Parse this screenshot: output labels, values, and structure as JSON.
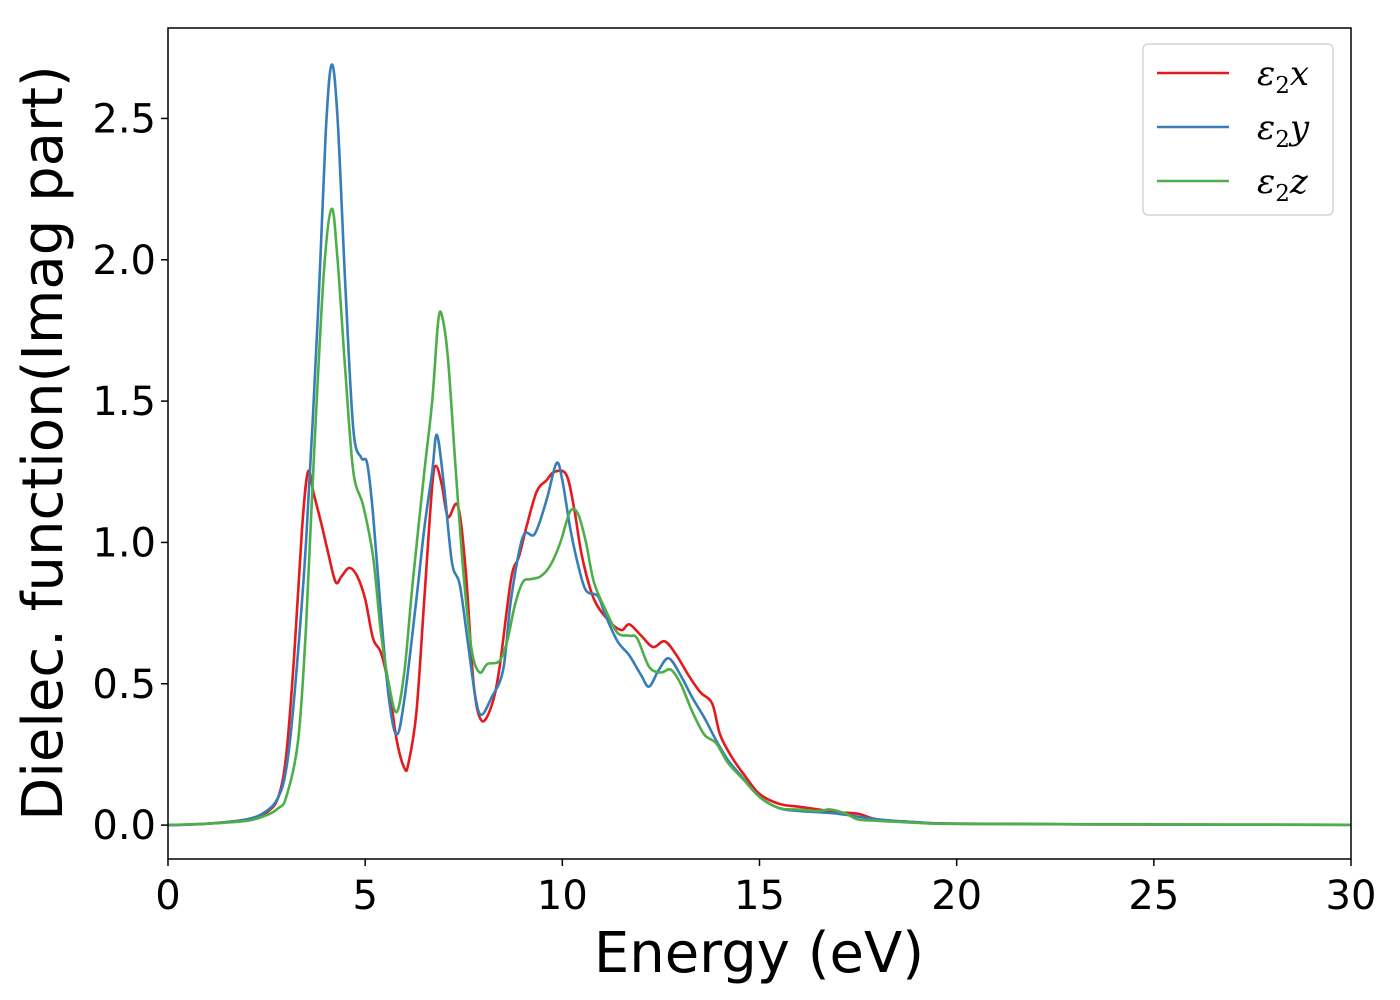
{
  "chart_data": {
    "type": "line",
    "title": "",
    "xlabel": "Energy (eV)",
    "ylabel": "Dielec. function(Imag part)",
    "xlim": [
      0,
      30
    ],
    "ylim": [
      -0.12,
      2.82
    ],
    "xticks": [
      "0",
      "5",
      "10",
      "15",
      "20",
      "25",
      "30"
    ],
    "yticks": [
      "0.0",
      "0.5",
      "1.0",
      "1.5",
      "2.0",
      "2.5"
    ],
    "grid": false,
    "legend_position": "top-right",
    "series": [
      {
        "name": "ε2x",
        "color": "#e41a1c",
        "points": [
          [
            0,
            0
          ],
          [
            1,
            0.005
          ],
          [
            2,
            0.02
          ],
          [
            2.5,
            0.045
          ],
          [
            2.8,
            0.1
          ],
          [
            3.0,
            0.25
          ],
          [
            3.2,
            0.6
          ],
          [
            3.4,
            1.05
          ],
          [
            3.55,
            1.25
          ],
          [
            3.7,
            1.17
          ],
          [
            3.9,
            1.06
          ],
          [
            4.05,
            0.97
          ],
          [
            4.25,
            0.86
          ],
          [
            4.4,
            0.88
          ],
          [
            4.6,
            0.91
          ],
          [
            4.8,
            0.88
          ],
          [
            5.0,
            0.8
          ],
          [
            5.2,
            0.66
          ],
          [
            5.4,
            0.61
          ],
          [
            5.6,
            0.49
          ],
          [
            5.8,
            0.3
          ],
          [
            6.0,
            0.2
          ],
          [
            6.1,
            0.22
          ],
          [
            6.3,
            0.4
          ],
          [
            6.5,
            0.8
          ],
          [
            6.7,
            1.2
          ],
          [
            6.8,
            1.27
          ],
          [
            6.95,
            1.2
          ],
          [
            7.1,
            1.09
          ],
          [
            7.35,
            1.13
          ],
          [
            7.55,
            0.9
          ],
          [
            7.75,
            0.5
          ],
          [
            7.95,
            0.37
          ],
          [
            8.2,
            0.42
          ],
          [
            8.4,
            0.55
          ],
          [
            8.7,
            0.87
          ],
          [
            8.9,
            0.95
          ],
          [
            9.1,
            1.06
          ],
          [
            9.35,
            1.18
          ],
          [
            9.6,
            1.22
          ],
          [
            9.8,
            1.25
          ],
          [
            10.1,
            1.24
          ],
          [
            10.3,
            1.12
          ],
          [
            10.5,
            0.95
          ],
          [
            10.8,
            0.8
          ],
          [
            11.2,
            0.72
          ],
          [
            11.5,
            0.69
          ],
          [
            11.7,
            0.71
          ],
          [
            12.0,
            0.67
          ],
          [
            12.3,
            0.63
          ],
          [
            12.6,
            0.65
          ],
          [
            12.9,
            0.6
          ],
          [
            13.2,
            0.53
          ],
          [
            13.5,
            0.47
          ],
          [
            13.8,
            0.43
          ],
          [
            14.0,
            0.32
          ],
          [
            14.3,
            0.24
          ],
          [
            14.6,
            0.18
          ],
          [
            15.0,
            0.11
          ],
          [
            15.5,
            0.075
          ],
          [
            16.0,
            0.065
          ],
          [
            16.5,
            0.055
          ],
          [
            17.0,
            0.045
          ],
          [
            17.5,
            0.04
          ],
          [
            18.0,
            0.02
          ],
          [
            19.0,
            0.01
          ],
          [
            20.0,
            0.005
          ],
          [
            25.0,
            0.002
          ],
          [
            30.0,
            0.001
          ]
        ]
      },
      {
        "name": "ε2y",
        "color": "#377eb8",
        "points": [
          [
            0,
            0
          ],
          [
            1,
            0.005
          ],
          [
            2,
            0.02
          ],
          [
            2.5,
            0.05
          ],
          [
            2.8,
            0.1
          ],
          [
            3.0,
            0.2
          ],
          [
            3.2,
            0.45
          ],
          [
            3.5,
            1.0
          ],
          [
            3.8,
            1.8
          ],
          [
            4.0,
            2.45
          ],
          [
            4.15,
            2.69
          ],
          [
            4.3,
            2.5
          ],
          [
            4.5,
            1.9
          ],
          [
            4.7,
            1.4
          ],
          [
            4.9,
            1.3
          ],
          [
            5.05,
            1.28
          ],
          [
            5.2,
            1.1
          ],
          [
            5.4,
            0.75
          ],
          [
            5.6,
            0.45
          ],
          [
            5.8,
            0.32
          ],
          [
            6.0,
            0.45
          ],
          [
            6.3,
            0.8
          ],
          [
            6.5,
            1.05
          ],
          [
            6.7,
            1.25
          ],
          [
            6.82,
            1.38
          ],
          [
            7.0,
            1.2
          ],
          [
            7.2,
            0.93
          ],
          [
            7.4,
            0.85
          ],
          [
            7.6,
            0.65
          ],
          [
            7.8,
            0.45
          ],
          [
            7.95,
            0.39
          ],
          [
            8.2,
            0.45
          ],
          [
            8.5,
            0.55
          ],
          [
            8.7,
            0.8
          ],
          [
            9.0,
            1.02
          ],
          [
            9.3,
            1.03
          ],
          [
            9.6,
            1.15
          ],
          [
            9.85,
            1.28
          ],
          [
            10.0,
            1.22
          ],
          [
            10.2,
            1.05
          ],
          [
            10.4,
            0.92
          ],
          [
            10.6,
            0.83
          ],
          [
            10.9,
            0.81
          ],
          [
            11.1,
            0.74
          ],
          [
            11.4,
            0.65
          ],
          [
            11.7,
            0.6
          ],
          [
            12.0,
            0.53
          ],
          [
            12.2,
            0.49
          ],
          [
            12.45,
            0.55
          ],
          [
            12.7,
            0.59
          ],
          [
            13.0,
            0.53
          ],
          [
            13.3,
            0.45
          ],
          [
            13.6,
            0.38
          ],
          [
            13.9,
            0.3
          ],
          [
            14.2,
            0.23
          ],
          [
            14.5,
            0.18
          ],
          [
            15.0,
            0.1
          ],
          [
            15.5,
            0.06
          ],
          [
            16.0,
            0.05
          ],
          [
            17.0,
            0.04
          ],
          [
            18.0,
            0.02
          ],
          [
            19.0,
            0.01
          ],
          [
            20.0,
            0.005
          ],
          [
            25.0,
            0.002
          ],
          [
            30.0,
            0.001
          ]
        ]
      },
      {
        "name": "ε2z",
        "color": "#4daf4a",
        "points": [
          [
            0,
            0
          ],
          [
            1,
            0.005
          ],
          [
            2,
            0.015
          ],
          [
            2.5,
            0.035
          ],
          [
            2.8,
            0.06
          ],
          [
            3.0,
            0.1
          ],
          [
            3.3,
            0.3
          ],
          [
            3.5,
            0.7
          ],
          [
            3.7,
            1.3
          ],
          [
            3.95,
            1.95
          ],
          [
            4.15,
            2.18
          ],
          [
            4.3,
            2.0
          ],
          [
            4.5,
            1.6
          ],
          [
            4.7,
            1.25
          ],
          [
            4.95,
            1.13
          ],
          [
            5.2,
            0.95
          ],
          [
            5.4,
            0.68
          ],
          [
            5.6,
            0.5
          ],
          [
            5.8,
            0.4
          ],
          [
            6.0,
            0.55
          ],
          [
            6.2,
            0.85
          ],
          [
            6.5,
            1.25
          ],
          [
            6.7,
            1.5
          ],
          [
            6.85,
            1.78
          ],
          [
            6.95,
            1.8
          ],
          [
            7.1,
            1.65
          ],
          [
            7.3,
            1.25
          ],
          [
            7.5,
            0.88
          ],
          [
            7.7,
            0.62
          ],
          [
            7.9,
            0.54
          ],
          [
            8.1,
            0.57
          ],
          [
            8.4,
            0.58
          ],
          [
            8.6,
            0.65
          ],
          [
            8.8,
            0.78
          ],
          [
            9.0,
            0.86
          ],
          [
            9.2,
            0.87
          ],
          [
            9.45,
            0.88
          ],
          [
            9.7,
            0.92
          ],
          [
            9.95,
            1.0
          ],
          [
            10.2,
            1.11
          ],
          [
            10.4,
            1.1
          ],
          [
            10.6,
            1.0
          ],
          [
            10.8,
            0.86
          ],
          [
            11.1,
            0.76
          ],
          [
            11.4,
            0.68
          ],
          [
            11.7,
            0.67
          ],
          [
            11.9,
            0.66
          ],
          [
            12.2,
            0.56
          ],
          [
            12.5,
            0.54
          ],
          [
            12.75,
            0.55
          ],
          [
            13.0,
            0.5
          ],
          [
            13.3,
            0.4
          ],
          [
            13.6,
            0.32
          ],
          [
            13.9,
            0.29
          ],
          [
            14.2,
            0.22
          ],
          [
            14.6,
            0.16
          ],
          [
            15.0,
            0.1
          ],
          [
            15.5,
            0.06
          ],
          [
            16.0,
            0.055
          ],
          [
            16.5,
            0.05
          ],
          [
            16.8,
            0.055
          ],
          [
            17.2,
            0.04
          ],
          [
            17.5,
            0.02
          ],
          [
            18.0,
            0.015
          ],
          [
            19.0,
            0.008
          ],
          [
            20.0,
            0.004
          ],
          [
            25.0,
            0.002
          ],
          [
            30.0,
            0.001
          ]
        ]
      }
    ]
  }
}
